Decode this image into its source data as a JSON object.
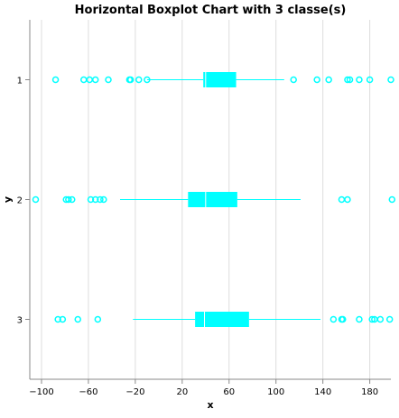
{
  "chart_data": {
    "type": "boxplot",
    "orientation": "horizontal",
    "title": "Horizontal Boxplot Chart with 3 classe(s)",
    "xlabel": "x",
    "ylabel": "y",
    "xlim": [
      -110,
      198
    ],
    "x_ticks": [
      -100,
      -60,
      -20,
      20,
      60,
      100,
      140,
      180
    ],
    "x_tick_labels": [
      "−100",
      "−60",
      "−20",
      "20",
      "60",
      "100",
      "140",
      "180"
    ],
    "grid": "vertical",
    "colors": {
      "box": "#00ffff",
      "whisker": "#00ffff",
      "outlier": "#00ffff",
      "grid": "#dddddd",
      "axis": "#888888"
    },
    "categories": [
      "1",
      "2",
      "3"
    ],
    "series": [
      {
        "category": "1",
        "whisker_low": -10,
        "q1": 38,
        "median": 40,
        "q3": 66,
        "whisker_high": 107,
        "outliers": [
          -88,
          -64,
          -59,
          -54,
          -43,
          -25,
          -24,
          -17,
          -10,
          115,
          135,
          145,
          161,
          163,
          171,
          180,
          198
        ]
      },
      {
        "category": "2",
        "whisker_low": -33,
        "q1": 25,
        "median": 40,
        "q3": 67,
        "whisker_high": 121,
        "outliers": [
          -105,
          -79,
          -77,
          -74,
          -58,
          -54,
          -50,
          -47,
          156,
          161,
          199
        ]
      },
      {
        "category": "3",
        "whisker_low": -22,
        "q1": 31,
        "median": 39,
        "q3": 77,
        "whisker_high": 138,
        "outliers": [
          -86,
          -82,
          -69,
          -52,
          149,
          156,
          157,
          171,
          182,
          184,
          189,
          197
        ]
      }
    ]
  }
}
